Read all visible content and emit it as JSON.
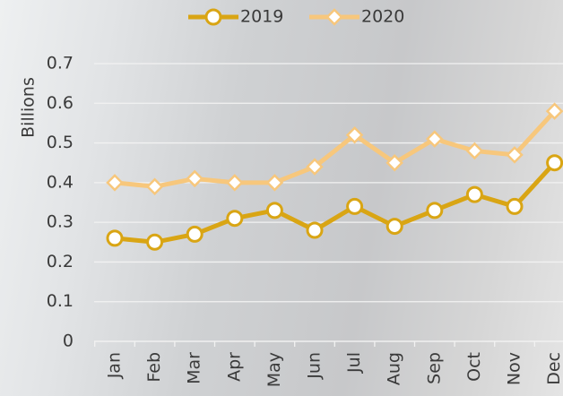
{
  "chart_data": {
    "type": "line",
    "y_label": "Billions",
    "categories": [
      "Jan",
      "Feb",
      "Mar",
      "Apr",
      "May",
      "Jun",
      "Jul",
      "Aug",
      "Sep",
      "Oct",
      "Nov",
      "Dec"
    ],
    "series": [
      {
        "name": "2019",
        "color": "#d9a514",
        "marker": "circle",
        "values": [
          0.26,
          0.25,
          0.27,
          0.31,
          0.33,
          0.28,
          0.34,
          0.29,
          0.33,
          0.37,
          0.34,
          0.45
        ]
      },
      {
        "name": "2020",
        "color": "#f7c77c",
        "marker": "diamond",
        "values": [
          0.4,
          0.39,
          0.41,
          0.4,
          0.4,
          0.44,
          0.52,
          0.45,
          0.51,
          0.48,
          0.47,
          0.58
        ]
      }
    ],
    "ylim": [
      0,
      0.7
    ],
    "yticks": [
      0,
      0.1,
      0.2,
      0.3,
      0.4,
      0.5,
      0.6,
      0.7
    ],
    "grid": true,
    "legend": "top"
  }
}
